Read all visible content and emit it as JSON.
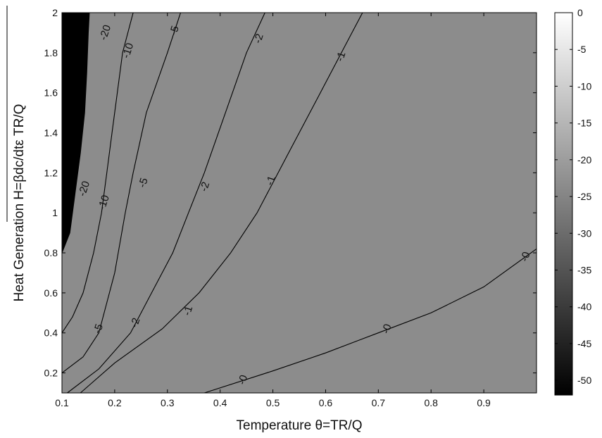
{
  "chart_data": {
    "type": "contour",
    "xlabel": "Temperature θ=TR/Q",
    "ylabel": "Heat Generation H=βdc/dtε TR/Q",
    "xlim": [
      0.1,
      1.0
    ],
    "ylim": [
      0.1,
      2.0
    ],
    "x_ticks": [
      "0.1",
      "0.2",
      "0.3",
      "0.4",
      "0.5",
      "0.6",
      "0.7",
      "0.8",
      "0.9"
    ],
    "y_ticks": [
      "0.2",
      "0.4",
      "0.6",
      "0.8",
      "1",
      "1.2",
      "1.4",
      "1.6",
      "1.8",
      "2"
    ],
    "colorbar": {
      "range": [
        -52,
        0
      ],
      "ticks": [
        "0",
        "-5",
        "-10",
        "-15",
        "-20",
        "-25",
        "-30",
        "-35",
        "-40",
        "-45",
        "-50"
      ]
    },
    "levels": [
      {
        "label": "-0",
        "color": "#ffffff",
        "curve": [
          [
            0.37,
            0.1
          ],
          [
            0.5,
            0.21
          ],
          [
            0.6,
            0.3
          ],
          [
            0.7,
            0.4
          ],
          [
            0.8,
            0.5
          ],
          [
            0.9,
            0.63
          ],
          [
            1.0,
            0.82
          ]
        ],
        "label_positions": [
          [
            0.444,
            0.165
          ],
          [
            0.717,
            0.42
          ],
          [
            0.98,
            0.78
          ]
        ]
      },
      {
        "label": "-1",
        "color": "#ffffff",
        "curve": [
          [
            0.135,
            0.1
          ],
          [
            0.2,
            0.25
          ],
          [
            0.29,
            0.42
          ],
          [
            0.36,
            0.6
          ],
          [
            0.42,
            0.8
          ],
          [
            0.47,
            1.0
          ],
          [
            0.53,
            1.3
          ],
          [
            0.59,
            1.6
          ],
          [
            0.65,
            1.9
          ],
          [
            0.67,
            2.0
          ]
        ],
        "label_positions": [
          [
            0.34,
            0.51
          ],
          [
            0.497,
            1.16
          ],
          [
            0.63,
            1.78
          ]
        ]
      },
      {
        "label": "-2",
        "color": "#ffffff",
        "curve": [
          [
            0.11,
            0.1
          ],
          [
            0.17,
            0.22
          ],
          [
            0.23,
            0.4
          ],
          [
            0.27,
            0.6
          ],
          [
            0.31,
            0.8
          ],
          [
            0.34,
            1.0
          ],
          [
            0.37,
            1.2
          ],
          [
            0.41,
            1.5
          ],
          [
            0.45,
            1.8
          ],
          [
            0.485,
            2.0
          ]
        ],
        "label_positions": [
          [
            0.24,
            0.45
          ],
          [
            0.372,
            1.13
          ],
          [
            0.474,
            1.87
          ]
        ]
      },
      {
        "label": "-5",
        "color": "#d9d9d9",
        "curve": [
          [
            0.1,
            0.2
          ],
          [
            0.14,
            0.28
          ],
          [
            0.17,
            0.4
          ],
          [
            0.2,
            0.7
          ],
          [
            0.22,
            1.0
          ],
          [
            0.235,
            1.2
          ],
          [
            0.26,
            1.5
          ],
          [
            0.3,
            1.8
          ],
          [
            0.325,
            2.0
          ]
        ],
        "label_positions": [
          [
            0.17,
            0.42
          ],
          [
            0.255,
            1.15
          ],
          [
            0.314,
            1.91
          ]
        ]
      },
      {
        "label": "-10",
        "color": "#c3c3c3",
        "curve": [
          [
            0.1,
            0.4
          ],
          [
            0.12,
            0.48
          ],
          [
            0.14,
            0.6
          ],
          [
            0.16,
            0.8
          ],
          [
            0.175,
            1.0
          ],
          [
            0.185,
            1.2
          ],
          [
            0.195,
            1.4
          ],
          [
            0.205,
            1.6
          ],
          [
            0.215,
            1.8
          ],
          [
            0.235,
            2.0
          ]
        ],
        "label_positions": [
          [
            0.18,
            1.05
          ],
          [
            0.226,
            1.81
          ]
        ]
      },
      {
        "label": "-20",
        "color": "#8c8c8c",
        "curve": [
          [
            0.1,
            0.8
          ],
          [
            0.115,
            0.9
          ],
          [
            0.125,
            1.1
          ],
          [
            0.135,
            1.3
          ],
          [
            0.143,
            1.5
          ],
          [
            0.147,
            1.7
          ],
          [
            0.15,
            1.9
          ],
          [
            0.152,
            2.0
          ]
        ],
        "label_positions": [
          [
            0.143,
            1.12
          ],
          [
            0.183,
            1.9
          ]
        ]
      },
      {
        "label": "",
        "color": "#000000",
        "curve": [],
        "label_positions": []
      }
    ]
  }
}
